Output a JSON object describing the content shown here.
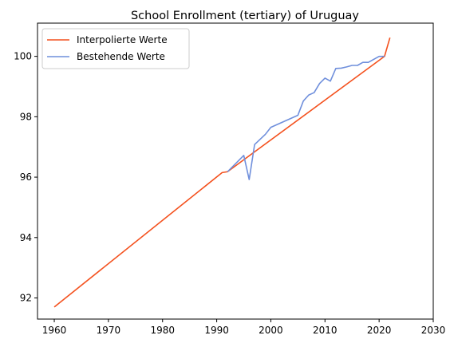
{
  "chart_data": {
    "type": "line",
    "title": "School Enrollment (tertiary) of Uruguay",
    "xlabel": "",
    "ylabel": "",
    "xlim": [
      1956.9,
      2030
    ],
    "ylim": [
      91.3,
      101.1
    ],
    "xticks": [
      1960,
      1970,
      1980,
      1990,
      2000,
      2010,
      2020,
      2030
    ],
    "yticks": [
      92,
      94,
      96,
      98,
      100
    ],
    "grid": false,
    "legend_position": "top-left",
    "series": [
      {
        "name": "Interpolierte Werte",
        "color": "#f4511e",
        "x": [
          1960,
          1991,
          1992,
          2021,
          2022
        ],
        "y": [
          91.7,
          96.15,
          96.18,
          100.0,
          100.62
        ]
      },
      {
        "name": "Bestehende Werte",
        "color": "#6f8fdc",
        "x": [
          1992,
          1995,
          1996,
          1997,
          1999,
          2000,
          2005,
          2006,
          2007,
          2008,
          2009,
          2010,
          2011,
          2012,
          2013,
          2014,
          2015,
          2016,
          2017,
          2018,
          2019,
          2020,
          2021
        ],
        "y": [
          96.18,
          96.72,
          95.92,
          97.08,
          97.42,
          97.65,
          98.05,
          98.52,
          98.72,
          98.8,
          99.1,
          99.28,
          99.18,
          99.6,
          99.61,
          99.65,
          99.7,
          99.7,
          99.8,
          99.8,
          99.9,
          100.0,
          100.0
        ]
      }
    ]
  }
}
